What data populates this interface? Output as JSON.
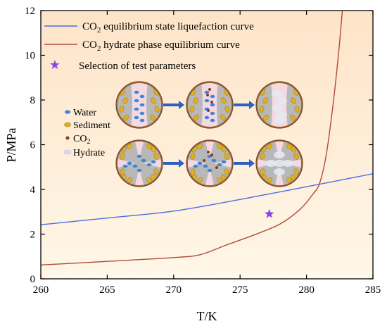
{
  "chart_data": {
    "type": "line",
    "xlabel": "T/K",
    "ylabel": "P/MPa",
    "xlim": [
      260,
      285
    ],
    "ylim": [
      0,
      12
    ],
    "xticks": [
      260,
      265,
      270,
      275,
      280,
      285
    ],
    "yticks": [
      0,
      2,
      4,
      6,
      8,
      10,
      12
    ],
    "grid": false,
    "legend_position": "top-left",
    "series": [
      {
        "name_main": "CO",
        "name_sub": "2",
        "name_rest": " equilibrium state liquefaction curve",
        "color": "#4a6fe0",
        "kind": "line",
        "points": [
          [
            260,
            2.42
          ],
          [
            265,
            2.72
          ],
          [
            270,
            3.03
          ],
          [
            275,
            3.55
          ],
          [
            280,
            4.12
          ],
          [
            285,
            4.7
          ]
        ]
      },
      {
        "name_main": "CO",
        "name_sub": "2",
        "name_rest": " hydrate phase equilibrium curve",
        "color": "#b04a3a",
        "kind": "line",
        "points": [
          [
            260,
            0.62
          ],
          [
            265,
            0.78
          ],
          [
            270,
            0.95
          ],
          [
            272,
            1.08
          ],
          [
            274,
            1.52
          ],
          [
            276,
            1.95
          ],
          [
            278,
            2.45
          ],
          [
            279.5,
            3.1
          ],
          [
            280.5,
            3.8
          ],
          [
            281,
            4.3
          ],
          [
            281.5,
            5.6
          ],
          [
            282,
            7.8
          ],
          [
            282.4,
            10.0
          ],
          [
            282.7,
            12.0
          ]
        ]
      },
      {
        "name": "Selection of test parameters",
        "color": "#8b44e6",
        "kind": "marker",
        "marker": "star",
        "points": [
          [
            277.2,
            2.9
          ]
        ]
      }
    ],
    "inset": {
      "legend": [
        {
          "label": "Water",
          "color": "#3b86d6"
        },
        {
          "label": "Sediment",
          "color": "#e0b020"
        },
        {
          "label_main": "CO",
          "label_sub": "2",
          "color": "#8b3a1e"
        },
        {
          "label": "Hydrate",
          "color": "#cfd3e6"
        }
      ],
      "arrow_color": "#2b5fc4"
    },
    "colors": {
      "background_top": "#fde6cc",
      "background_bottom": "#fff7e6",
      "axis": "#000000"
    }
  }
}
